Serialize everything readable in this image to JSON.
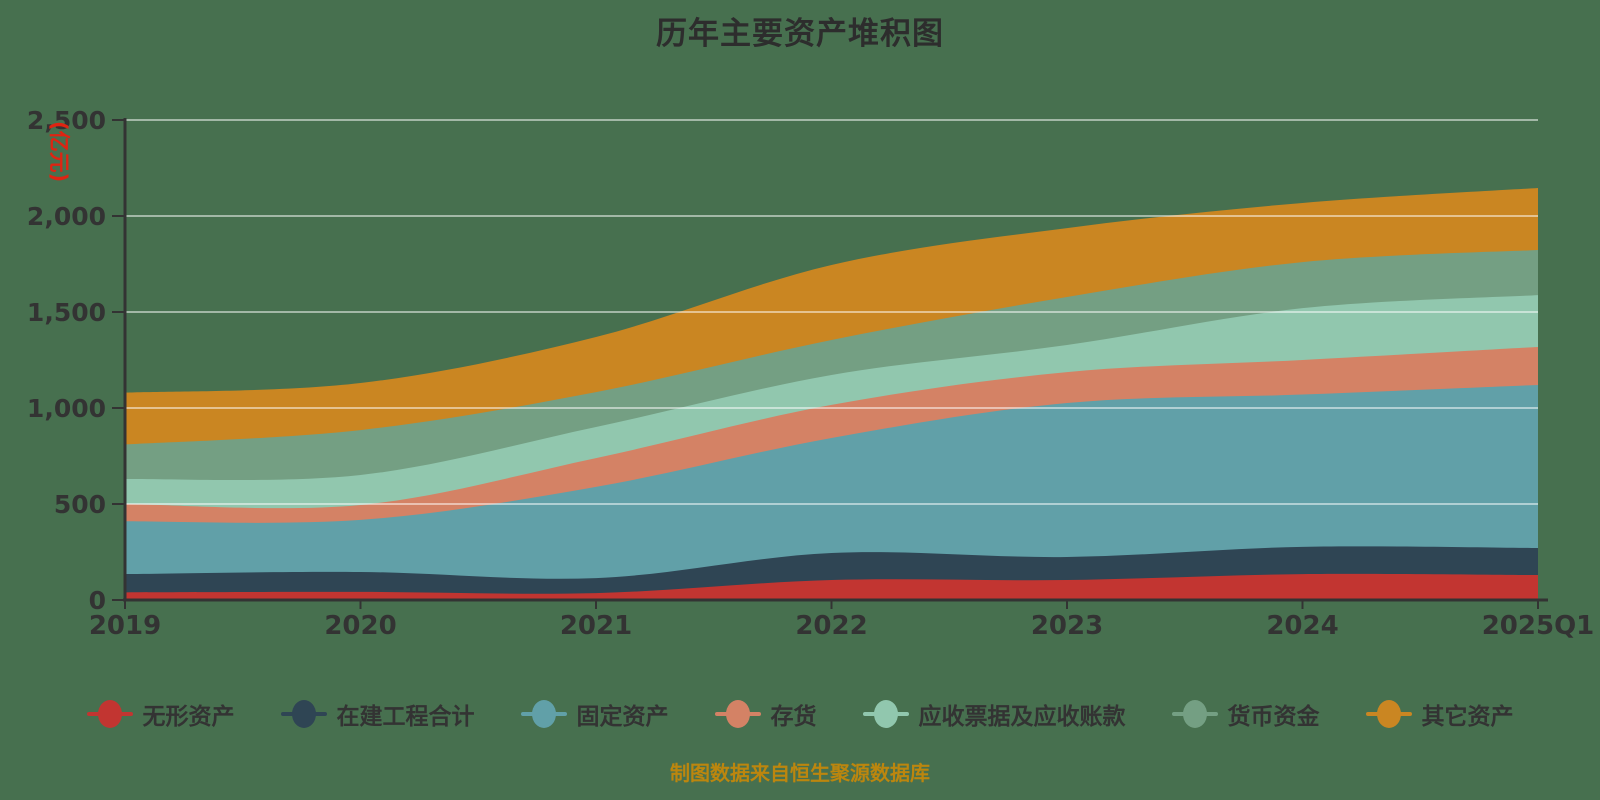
{
  "page": {
    "background_color": "#47704f",
    "text_color": "#333333",
    "caption": "制图数据来自恒生聚源数据库",
    "caption_color": "#bc860e"
  },
  "chart_data": {
    "type": "area",
    "stacked": true,
    "smooth": true,
    "title": "历年主要资产堆积图",
    "title_color": "#2d2d2d",
    "ylabel": "(亿元)",
    "ylabel_color": "#df2412",
    "xlabel": "",
    "axis_color": "#333333",
    "grid": true,
    "gridline_color": "rgba(255,255,255,0.5)",
    "legend_position": "bottom",
    "ylim": [
      0,
      2500
    ],
    "y_ticks": [
      0,
      500,
      1000,
      1500,
      2000,
      2500
    ],
    "y_tick_labels": [
      "0",
      "500",
      "1,000",
      "1,500",
      "2,000",
      "2,500"
    ],
    "categories": [
      "2019",
      "2020",
      "2021",
      "2022",
      "2023",
      "2024",
      "2025Q1"
    ],
    "series": [
      {
        "name": "无形资产",
        "color": "#c23531",
        "values": [
          40,
          42,
          36,
          104,
          104,
          135,
          130
        ]
      },
      {
        "name": "在建工程合计",
        "color": "#2f4554",
        "values": [
          95,
          104,
          78,
          141,
          120,
          142,
          141
        ]
      },
      {
        "name": "固定资产",
        "color": "#61a0a8",
        "values": [
          275,
          271,
          475,
          599,
          802,
          793,
          849
        ]
      },
      {
        "name": "存货",
        "color": "#d48265",
        "values": [
          90,
          78,
          150,
          172,
          161,
          180,
          198
        ]
      },
      {
        "name": "应收票据及应收账款",
        "color": "#91c7ae",
        "values": [
          130,
          156,
          162,
          156,
          141,
          270,
          270
        ]
      },
      {
        "name": "货币资金",
        "color": "#749f83",
        "values": [
          180,
          234,
          182,
          182,
          250,
          240,
          235
        ]
      },
      {
        "name": "其它资产",
        "color": "#ca8622",
        "values": [
          270,
          245,
          287,
          391,
          359,
          308,
          323
        ]
      }
    ]
  }
}
